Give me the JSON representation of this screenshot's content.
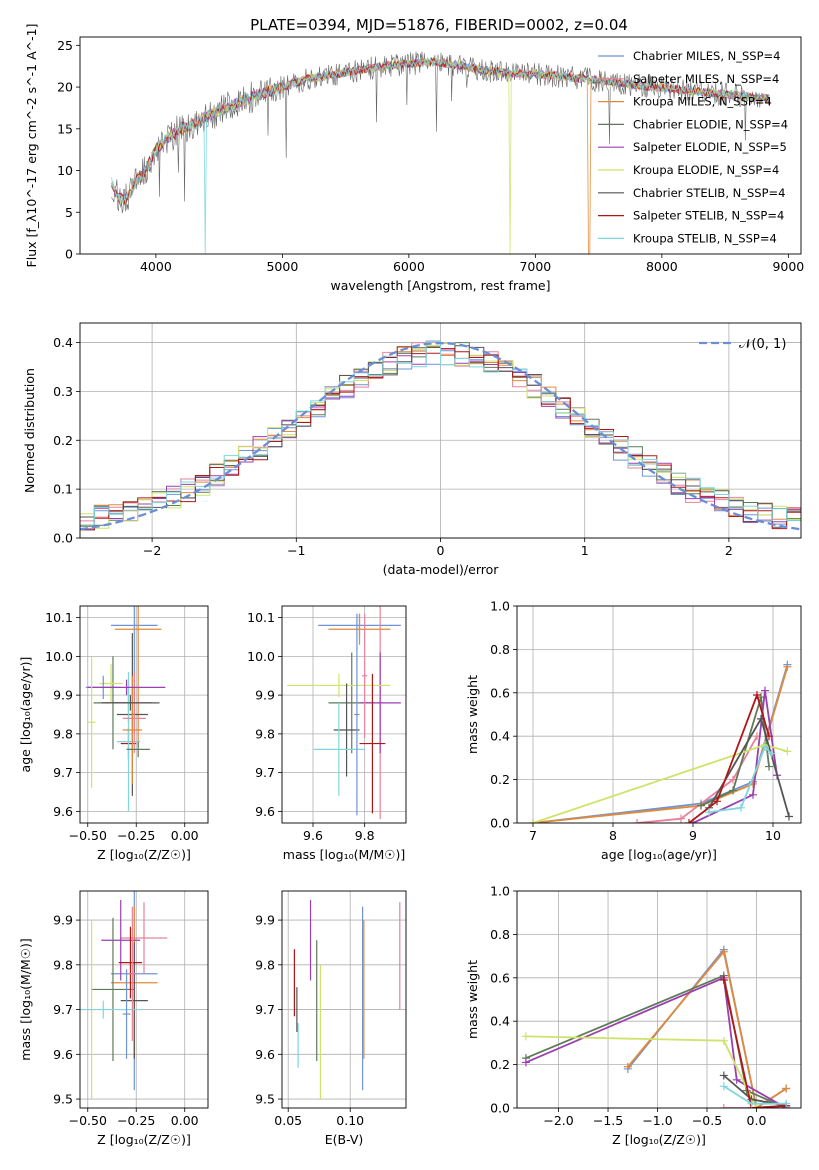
{
  "colors": [
    "#6f94d6",
    "#e8829a",
    "#e08a3a",
    "#5f7a5a",
    "#9b40b0",
    "#cfe36a",
    "#555555",
    "#b01818",
    "#7fd6de"
  ],
  "chart_data": [
    {
      "id": "spectrum",
      "type": "line",
      "title": "PLATE=0394, MJD=51876, FIBERID=0002, z=0.04",
      "xlabel": "wavelength [Angstrom, rest frame]",
      "ylabel": "Flux [f_λ10^-17 erg cm^-2 s^-1 A^-1]",
      "xlim": [
        3400,
        9100
      ],
      "ylim": [
        0,
        26
      ],
      "xticks": [
        4000,
        5000,
        6000,
        7000,
        8000,
        9000
      ],
      "yticks": [
        0,
        5,
        10,
        15,
        20,
        25
      ],
      "legend_position": "top-right",
      "legend": [
        "Chabrier MILES, N_SSP=4",
        "Salpeter MILES, N_SSP=4",
        "Kroupa MILES, N_SSP=4",
        "Chabrier ELODIE, N_SSP=4",
        "Salpeter ELODIE, N_SSP=5",
        "Kroupa ELODIE, N_SSP=4",
        "Chabrier STELIB, N_SSP=4",
        "Salpeter STELIB, N_SSP=4",
        "Kroupa STELIB, N_SSP=4"
      ],
      "continuum": [
        [
          3650,
          8.5
        ],
        [
          3700,
          6.8
        ],
        [
          3750,
          6.5
        ],
        [
          3800,
          7.3
        ],
        [
          3850,
          9
        ],
        [
          3900,
          9.5
        ],
        [
          3950,
          11
        ],
        [
          4000,
          12.5
        ],
        [
          4100,
          14
        ],
        [
          4200,
          15
        ],
        [
          4300,
          15.5
        ],
        [
          4400,
          16.5
        ],
        [
          4600,
          17.8
        ],
        [
          4800,
          19
        ],
        [
          5000,
          20
        ],
        [
          5200,
          21
        ],
        [
          5400,
          21.5
        ],
        [
          5600,
          22
        ],
        [
          5800,
          22.5
        ],
        [
          6000,
          22.8
        ],
        [
          6200,
          23
        ],
        [
          6400,
          22.6
        ],
        [
          6600,
          22
        ],
        [
          6800,
          21.7
        ],
        [
          7000,
          21.5
        ],
        [
          7200,
          21.3
        ],
        [
          7400,
          21
        ],
        [
          7600,
          20.6
        ],
        [
          7800,
          20.2
        ],
        [
          8000,
          19.9
        ],
        [
          8200,
          19.6
        ],
        [
          8400,
          19.3
        ],
        [
          8600,
          19
        ],
        [
          8850,
          18.6
        ]
      ],
      "grid": false
    },
    {
      "id": "residuals",
      "type": "histogram",
      "xlabel": "(data-model)/error",
      "ylabel": "Normed distribution",
      "xlim": [
        -2.5,
        2.5
      ],
      "ylim": [
        0,
        0.44
      ],
      "xticks": [
        -2,
        -1,
        0,
        1,
        2
      ],
      "yticks": [
        0.0,
        0.1,
        0.2,
        0.3,
        0.4
      ],
      "bin_width": 0.1,
      "gaussian_label": "𝒩(0, 1)",
      "grid": true
    },
    {
      "id": "age-vs-Z",
      "type": "errorbar",
      "xlabel": "Z [log₁₀(Z/Z☉)]",
      "ylabel": "age  [log₁₀(age/yr)]",
      "xlim": [
        -0.54,
        0.12
      ],
      "ylim": [
        9.57,
        10.13
      ],
      "xticks": [
        -0.5,
        -0.25,
        0.0
      ],
      "yticks": [
        9.6,
        9.7,
        9.8,
        9.9,
        10.0,
        10.1
      ],
      "points": [
        {
          "x": -0.26,
          "xe": 0.12,
          "y": 10.08,
          "ye": 0.2
        },
        {
          "x": -0.26,
          "xe": 0.03,
          "y": 9.88,
          "ye": 0.08
        },
        {
          "x": -0.24,
          "xe": 0.12,
          "y": 10.07,
          "ye": 0.3
        },
        {
          "x": -0.37,
          "xe": 0.1,
          "y": 9.88,
          "ye": 0.12
        },
        {
          "x": -0.29,
          "xe": 0.12,
          "y": 9.88,
          "ye": 0.05
        },
        {
          "x": -0.38,
          "xe": 0.06,
          "y": 9.93,
          "ye": 0.05
        },
        {
          "x": -0.27,
          "xe": 0.08,
          "y": 9.85,
          "ye": 0.21
        },
        {
          "x": -0.29,
          "xe": 0.04,
          "y": 9.775,
          "ye": 0.04
        },
        {
          "x": -0.29,
          "xe": 0.06,
          "y": 9.78,
          "ye": 0.18
        },
        {
          "x": -0.42,
          "xe": 0.09,
          "y": 9.92,
          "ye": 0.03
        },
        {
          "x": -0.26,
          "xe": 0.06,
          "y": 9.84,
          "ye": 0.09
        },
        {
          "x": -0.27,
          "xe": 0.05,
          "y": 9.81,
          "ye": 0.14
        },
        {
          "x": -0.24,
          "xe": 0.06,
          "y": 9.76,
          "ye": 0.02
        },
        {
          "x": -0.3,
          "xe": 0.2,
          "y": 9.92,
          "ye": 0.02
        },
        {
          "x": -0.48,
          "xe": 0.02,
          "y": 9.83,
          "ye": 0.17
        },
        {
          "x": -0.28,
          "xe": 0.15,
          "y": 9.88,
          "ye": 0.02
        }
      ],
      "grid": true
    },
    {
      "id": "age-vs-mass",
      "type": "errorbar",
      "xlabel": "mass [log₁₀(M/M☉)]",
      "ylabel": "",
      "xlim": [
        9.48,
        9.96
      ],
      "ylim": [
        9.57,
        10.13
      ],
      "xticks": [
        9.6,
        9.8
      ],
      "yticks": [
        9.6,
        9.7,
        9.8,
        9.9,
        10.0,
        10.1
      ],
      "points": [
        {
          "x": 9.78,
          "xe": 0.16,
          "y": 10.08,
          "ye": 0.03
        },
        {
          "x": 9.86,
          "xe": 0.01,
          "y": 9.88,
          "ye": 0.3
        },
        {
          "x": 9.78,
          "xe": 0.12,
          "y": 10.07,
          "ye": 0.04
        },
        {
          "x": 9.75,
          "xe": 0.09,
          "y": 9.88,
          "ye": 0.13
        },
        {
          "x": 9.86,
          "xe": 0.08,
          "y": 9.88,
          "ye": 0.13
        },
        {
          "x": 9.7,
          "xe": 0.2,
          "y": 9.925,
          "ye": 0.03
        },
        {
          "x": 9.73,
          "xe": 0.05,
          "y": 9.81,
          "ye": 0.12
        },
        {
          "x": 9.83,
          "xe": 0.05,
          "y": 9.775,
          "ye": 0.18
        },
        {
          "x": 9.7,
          "xe": 0.1,
          "y": 9.76,
          "ye": 0.12
        },
        {
          "x": 9.77,
          "xe": 0.01,
          "y": 9.85,
          "ye": 0.26
        },
        {
          "x": 9.8,
          "xe": 0.01,
          "y": 9.95,
          "ye": 0.16
        }
      ],
      "grid": true
    },
    {
      "id": "massweight-vs-age",
      "type": "line",
      "xlabel": "age  [log₁₀(age/yr)]",
      "ylabel": "mass weight",
      "xlim": [
        6.8,
        10.35
      ],
      "ylim": [
        0,
        1
      ],
      "xticks": [
        7,
        8,
        9,
        10
      ],
      "yticks": [
        0.0,
        0.2,
        0.4,
        0.6,
        0.8,
        1.0
      ],
      "series": [
        {
          "x": [
            7.0,
            9.1,
            9.75,
            10.18
          ],
          "y": [
            0.0,
            0.09,
            0.19,
            0.73
          ]
        },
        {
          "x": [
            8.3,
            8.85,
            9.5,
            9.8
          ],
          "y": [
            0.0,
            0.02,
            0.2,
            0.4
          ]
        },
        {
          "x": [
            7.0,
            9.1,
            9.75,
            10.18
          ],
          "y": [
            0.0,
            0.08,
            0.18,
            0.72
          ]
        },
        {
          "x": [
            9.1,
            9.5,
            9.85,
            9.95
          ],
          "y": [
            0.08,
            0.15,
            0.58,
            0.26
          ]
        },
        {
          "x": [
            9.0,
            9.75,
            9.9,
            10.05
          ],
          "y": [
            0.0,
            0.13,
            0.61,
            0.22
          ]
        },
        {
          "x": [
            7.0,
            9.9,
            10.18
          ],
          "y": [
            0.0,
            0.36,
            0.33
          ]
        },
        {
          "x": [
            9.2,
            9.85,
            10.2
          ],
          "y": [
            0.07,
            0.48,
            0.03
          ]
        },
        {
          "x": [
            8.95,
            9.3,
            9.8,
            9.95
          ],
          "y": [
            0.0,
            0.1,
            0.59,
            0.4
          ]
        },
        {
          "x": [
            9.2,
            9.6,
            9.9,
            9.98
          ],
          "y": [
            0.05,
            0.07,
            0.35,
            0.32
          ]
        }
      ],
      "grid": true
    },
    {
      "id": "mass-vs-Z",
      "type": "errorbar",
      "xlabel": "Z [log₁₀(Z/Z☉)]",
      "ylabel": "mass [log₁₀(M/M☉)]",
      "xlim": [
        -0.54,
        0.12
      ],
      "ylim": [
        9.48,
        9.965
      ],
      "xticks": [
        -0.5,
        -0.25,
        0.0
      ],
      "yticks": [
        9.5,
        9.6,
        9.7,
        9.8,
        9.9
      ],
      "points": [
        {
          "x": -0.26,
          "xe": 0.12,
          "y": 9.78,
          "ye": 0.26
        },
        {
          "x": -0.21,
          "xe": 0.12,
          "y": 9.86,
          "ye": 0.08
        },
        {
          "x": -0.26,
          "xe": 0.12,
          "y": 9.76,
          "ye": 0.17
        },
        {
          "x": -0.37,
          "xe": 0.11,
          "y": 9.745,
          "ye": 0.16
        },
        {
          "x": -0.33,
          "xe": 0.1,
          "y": 9.855,
          "ye": 0.09
        },
        {
          "x": -0.48,
          "xe": 0.02,
          "y": 9.7,
          "ye": 0.2
        },
        {
          "x": -0.26,
          "xe": 0.07,
          "y": 9.72,
          "ye": 0.13
        },
        {
          "x": -0.28,
          "xe": 0.06,
          "y": 9.805,
          "ye": 0.08
        },
        {
          "x": -0.42,
          "xe": 0.2,
          "y": 9.7,
          "ye": 0.02
        },
        {
          "x": -0.3,
          "xe": 0.02,
          "y": 9.69,
          "ye": 0.1
        },
        {
          "x": -0.27,
          "xe": 0.02,
          "y": 9.78,
          "ye": 0.15
        }
      ],
      "grid": true
    },
    {
      "id": "mass-vs-EBV",
      "type": "errorbar",
      "xlabel": "E(B-V)",
      "ylabel": "",
      "xlim": [
        0.045,
        0.145
      ],
      "ylim": [
        9.48,
        9.965
      ],
      "xticks": [
        0.05,
        0.1
      ],
      "yticks": [
        9.5,
        9.6,
        9.7,
        9.8,
        9.9
      ],
      "points": [
        {
          "x": 0.11,
          "y": 9.725,
          "ye": 0.205
        },
        {
          "x": 0.14,
          "y": 9.82,
          "ye": 0.12
        },
        {
          "x": 0.111,
          "y": 9.745,
          "ye": 0.155
        },
        {
          "x": 0.073,
          "y": 9.72,
          "ye": 0.135
        },
        {
          "x": 0.068,
          "y": 9.855,
          "ye": 0.09
        },
        {
          "x": 0.076,
          "y": 9.65,
          "ye": 0.15
        },
        {
          "x": 0.057,
          "y": 9.7,
          "ye": 0.05
        },
        {
          "x": 0.055,
          "y": 9.76,
          "ye": 0.075
        },
        {
          "x": 0.058,
          "y": 9.62,
          "ye": 0.05
        }
      ],
      "grid": true
    },
    {
      "id": "massweight-vs-Z",
      "type": "line",
      "xlabel": "Z [log₁₀(Z/Z☉)]",
      "ylabel": "mass weight",
      "xlim": [
        -2.42,
        0.45
      ],
      "ylim": [
        0,
        1
      ],
      "xticks": [
        -2.0,
        -1.5,
        -1.0,
        -0.5,
        0.0
      ],
      "yticks": [
        0.0,
        0.2,
        0.4,
        0.6,
        0.8,
        1.0
      ],
      "series": [
        {
          "x": [
            -1.3,
            -0.33,
            0.0,
            0.3
          ],
          "y": [
            0.18,
            0.73,
            0.0,
            0.09
          ]
        },
        {
          "x": [
            -0.33,
            0.0,
            0.3
          ],
          "y": [
            0.0,
            0.0,
            0.0
          ]
        },
        {
          "x": [
            -1.3,
            -0.33,
            0.0,
            0.3
          ],
          "y": [
            0.19,
            0.72,
            0.0,
            0.09
          ]
        },
        {
          "x": [
            -2.33,
            -0.33,
            -0.1,
            0.3
          ],
          "y": [
            0.23,
            0.61,
            0.08,
            0.0
          ]
        },
        {
          "x": [
            -2.33,
            -0.33,
            -0.2,
            0.3
          ],
          "y": [
            0.21,
            0.6,
            0.13,
            0.0
          ]
        },
        {
          "x": [
            -2.33,
            -0.33,
            0.0
          ],
          "y": [
            0.33,
            0.31,
            0.0
          ]
        },
        {
          "x": [
            -0.33,
            -0.05,
            0.3
          ],
          "y": [
            0.15,
            0.04,
            0.01
          ]
        },
        {
          "x": [
            -0.33,
            -0.05,
            0.3
          ],
          "y": [
            0.59,
            0.0,
            0.01
          ]
        },
        {
          "x": [
            -0.33,
            -0.05,
            0.3
          ],
          "y": [
            0.1,
            0.02,
            0.02
          ]
        }
      ],
      "grid": true
    }
  ]
}
